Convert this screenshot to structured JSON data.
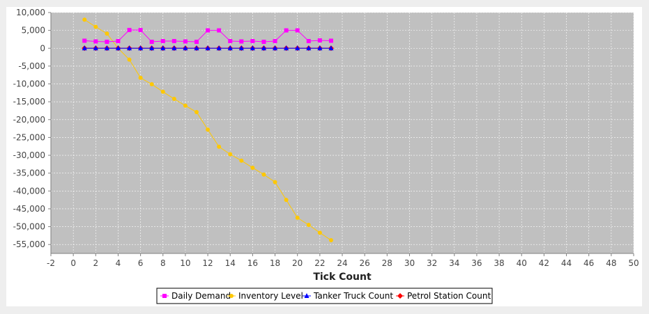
{
  "chart_data": {
    "type": "line",
    "xlabel": "Tick Count",
    "ylabel": "",
    "xlim": [
      -2,
      50
    ],
    "ylim": [
      -57500,
      10000
    ],
    "x_ticks": [
      -2,
      0,
      2,
      4,
      6,
      8,
      10,
      12,
      14,
      16,
      18,
      20,
      22,
      24,
      26,
      28,
      30,
      32,
      34,
      36,
      38,
      40,
      42,
      44,
      46,
      48,
      50
    ],
    "y_ticks": [
      10000,
      5000,
      0,
      -5000,
      -10000,
      -15000,
      -20000,
      -25000,
      -30000,
      -35000,
      -40000,
      -45000,
      -50000,
      -55000
    ],
    "grid": true,
    "legend_position": "bottom",
    "colors": {
      "plot_bg": "#c0c0c0",
      "grid": "#ffffff",
      "page_bg": "#eeeeee"
    },
    "series": [
      {
        "name": "Daily Demand",
        "color": "#ff00ff",
        "marker": "square",
        "x": [
          1,
          2,
          3,
          4,
          5,
          6,
          7,
          8,
          9,
          10,
          11,
          12,
          13,
          14,
          15,
          16,
          17,
          18,
          19,
          20,
          21,
          22,
          23
        ],
        "values": [
          2100,
          1900,
          1800,
          2000,
          5100,
          5100,
          1800,
          2000,
          2000,
          1900,
          1800,
          5000,
          5000,
          2000,
          1900,
          2000,
          1800,
          2000,
          5000,
          5000,
          2000,
          2200,
          2100
        ]
      },
      {
        "name": "Inventory Level",
        "color": "#ffc800",
        "marker": "circle",
        "x": [
          1,
          2,
          3,
          4,
          5,
          6,
          7,
          8,
          9,
          10,
          11,
          12,
          13,
          14,
          15,
          16,
          17,
          18,
          19,
          20,
          21,
          22,
          23
        ],
        "values": [
          8000,
          6000,
          4100,
          0,
          -3200,
          -8300,
          -10100,
          -12200,
          -14200,
          -16100,
          -17900,
          -22800,
          -27600,
          -29700,
          -31500,
          -33500,
          -35400,
          -37500,
          -42500,
          -47500,
          -49500,
          -51700,
          -53800
        ]
      },
      {
        "name": "Tanker Truck Count",
        "color": "#0000ff",
        "marker": "triangle",
        "x": [
          1,
          2,
          3,
          4,
          5,
          6,
          7,
          8,
          9,
          10,
          11,
          12,
          13,
          14,
          15,
          16,
          17,
          18,
          19,
          20,
          21,
          22,
          23
        ],
        "values": [
          0,
          0,
          0,
          0,
          0,
          0,
          0,
          0,
          0,
          0,
          0,
          0,
          0,
          0,
          0,
          0,
          0,
          0,
          0,
          0,
          0,
          0,
          0
        ]
      },
      {
        "name": "Petrol Station Count",
        "color": "#ff0000",
        "marker": "diamond",
        "x": [
          1,
          2,
          3,
          4,
          5,
          6,
          7,
          8,
          9,
          10,
          11,
          12,
          13,
          14,
          15,
          16,
          17,
          18,
          19,
          20,
          21,
          22,
          23
        ],
        "values": [
          0,
          0,
          0,
          0,
          0,
          0,
          0,
          0,
          0,
          0,
          0,
          0,
          0,
          0,
          0,
          0,
          0,
          0,
          0,
          0,
          0,
          0,
          0
        ]
      }
    ]
  }
}
